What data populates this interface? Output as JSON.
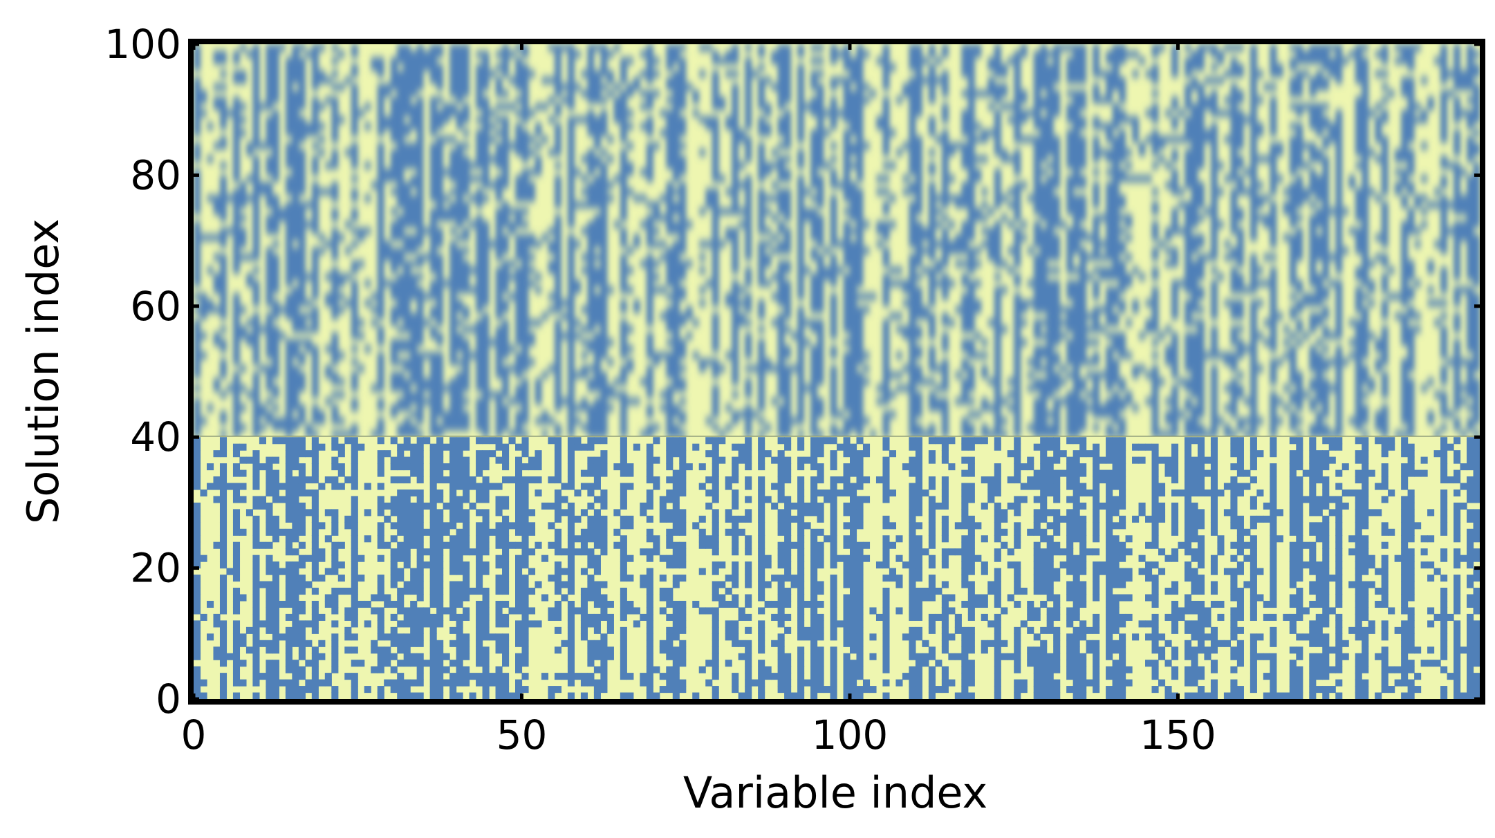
{
  "chart_data": {
    "type": "heatmap",
    "title": "",
    "xlabel": "Variable index",
    "ylabel": "Solution index",
    "xlim": [
      0,
      196
    ],
    "ylim": [
      0,
      100
    ],
    "x_ticks": [
      0,
      50,
      100,
      150
    ],
    "x_tick_labels": [
      "0",
      "50",
      "100",
      "150"
    ],
    "y_ticks": [
      0,
      20,
      40,
      60,
      80,
      100
    ],
    "y_tick_labels": [
      "0",
      "20",
      "40",
      "60",
      "80",
      "100"
    ],
    "n_variables": 196,
    "n_solutions": 100,
    "boundary_solution_index": 40,
    "lower_region": "sharp (solutions 0-39)",
    "upper_region": "blurred (solutions 40-99)",
    "value_levels": [
      0,
      1
    ],
    "colors": {
      "value_0": "#5080b8",
      "value_1": "#eef6b0"
    },
    "grid": false,
    "legend": "none",
    "column_dominant_values": [
      0,
      1,
      1,
      1,
      0,
      1,
      0,
      1,
      1,
      0,
      1,
      0,
      0,
      1,
      0,
      0,
      0,
      1,
      0,
      1,
      1,
      0,
      1,
      1,
      0,
      1,
      1,
      1,
      0,
      1,
      0,
      0,
      0,
      0,
      0,
      1,
      0,
      0,
      1,
      0,
      0,
      0,
      1,
      0,
      0,
      1,
      0,
      0,
      1,
      0,
      0,
      1,
      1,
      1,
      1,
      0,
      1,
      0,
      1,
      1,
      0,
      0,
      0,
      1,
      1,
      0,
      1,
      1,
      1,
      0,
      1,
      1,
      0,
      0,
      0,
      1,
      1,
      1,
      1,
      0,
      1,
      1,
      0,
      1,
      0,
      1,
      0,
      1,
      1,
      0,
      0,
      1,
      0,
      1,
      0,
      0,
      1,
      0,
      1,
      0,
      0,
      0,
      1,
      1,
      1,
      0,
      1,
      1,
      1,
      0,
      0,
      1,
      0,
      1,
      0,
      1,
      1,
      0,
      0,
      1,
      1,
      1,
      0,
      1,
      1,
      0,
      1,
      1,
      0,
      0,
      0,
      0,
      1,
      0,
      0,
      0,
      1,
      0,
      1,
      0,
      0,
      0,
      1,
      1,
      1,
      1,
      0,
      1,
      1,
      0,
      1,
      0,
      0,
      0,
      1,
      0,
      1,
      1,
      0,
      0,
      1,
      0,
      1,
      1,
      0,
      1,
      1,
      0,
      0,
      1,
      0,
      0,
      0,
      1,
      0,
      1,
      1,
      0,
      0,
      1,
      1,
      0,
      1,
      1,
      0,
      0,
      1,
      1,
      1,
      1,
      0,
      1,
      0,
      1,
      0,
      0
    ]
  }
}
